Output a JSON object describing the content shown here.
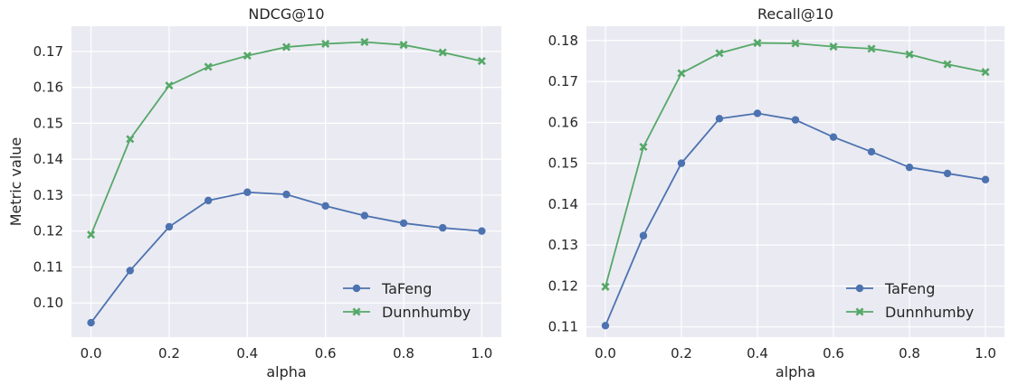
{
  "chart_data": [
    {
      "type": "line",
      "title": "NDCG@10",
      "xlabel": "alpha",
      "ylabel": "Metric value",
      "x": [
        0.0,
        0.1,
        0.2,
        0.3,
        0.4,
        0.5,
        0.6,
        0.7,
        0.8,
        0.9,
        1.0
      ],
      "xticks": [
        "0.0",
        "0.2",
        "0.4",
        "0.6",
        "0.8",
        "1.0"
      ],
      "xlim": [
        -0.05,
        1.05
      ],
      "yticks": [
        "0.10",
        "0.11",
        "0.12",
        "0.13",
        "0.14",
        "0.15",
        "0.16",
        "0.17"
      ],
      "ylim": [
        0.0905,
        0.177
      ],
      "grid": true,
      "legend": "lower-right",
      "series": [
        {
          "name": "TaFeng",
          "color": "#4c72b0",
          "marker": "circle",
          "values": [
            0.0945,
            0.109,
            0.1212,
            0.1285,
            0.1308,
            0.1302,
            0.127,
            0.1243,
            0.1222,
            0.1209,
            0.12
          ]
        },
        {
          "name": "Dunnhumby",
          "color": "#55a868",
          "marker": "x",
          "values": [
            0.119,
            0.1456,
            0.1605,
            0.1657,
            0.1688,
            0.1712,
            0.1721,
            0.1726,
            0.1718,
            0.1697,
            0.1673
          ]
        }
      ]
    },
    {
      "type": "line",
      "title": "Recall@10",
      "xlabel": "alpha",
      "ylabel": "",
      "x": [
        0.0,
        0.1,
        0.2,
        0.3,
        0.4,
        0.5,
        0.6,
        0.7,
        0.8,
        0.9,
        1.0
      ],
      "xticks": [
        "0.0",
        "0.2",
        "0.4",
        "0.6",
        "0.8",
        "1.0"
      ],
      "xlim": [
        -0.05,
        1.05
      ],
      "yticks": [
        "0.11",
        "0.12",
        "0.13",
        "0.14",
        "0.15",
        "0.16",
        "0.17",
        "0.18"
      ],
      "ylim": [
        0.1075,
        0.1835
      ],
      "grid": true,
      "legend": "lower-right",
      "series": [
        {
          "name": "TaFeng",
          "color": "#4c72b0",
          "marker": "circle",
          "values": [
            0.1103,
            0.1323,
            0.15,
            0.1609,
            0.1622,
            0.1606,
            0.1564,
            0.1528,
            0.149,
            0.1475,
            0.146
          ]
        },
        {
          "name": "Dunnhumby",
          "color": "#55a868",
          "marker": "x",
          "values": [
            0.1198,
            0.154,
            0.172,
            0.1769,
            0.1794,
            0.1793,
            0.1785,
            0.178,
            0.1766,
            0.1742,
            0.1723
          ]
        }
      ]
    }
  ],
  "theme": {
    "axes_bg": "#eaeaf2",
    "grid": "#ffffff",
    "text": "#262626"
  }
}
